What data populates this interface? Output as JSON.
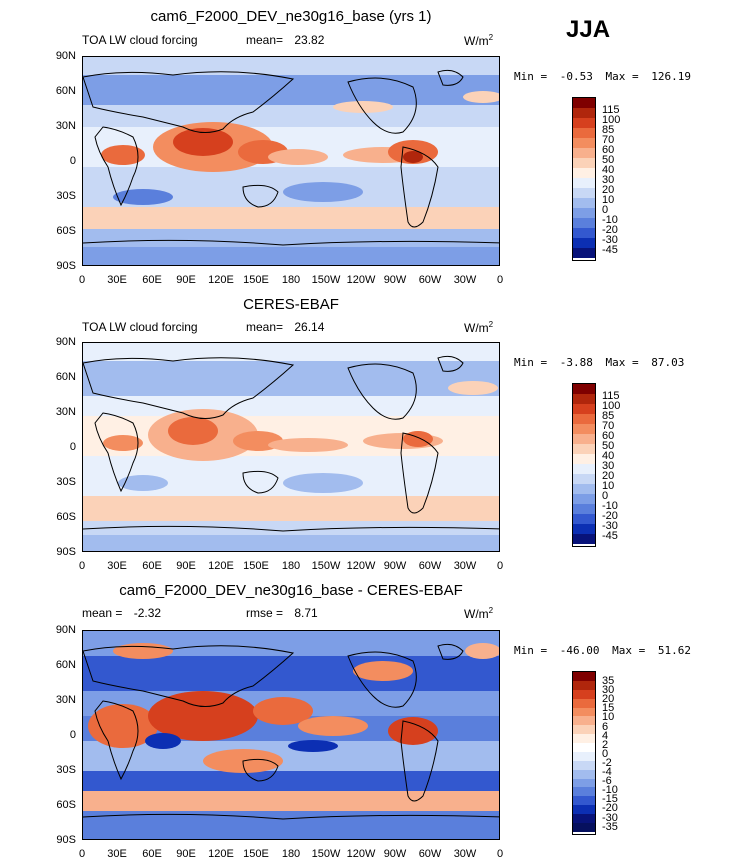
{
  "season": "JJA",
  "panels": [
    {
      "title": "cam6_F2000_DEV_ne30g16_base (yrs 1)",
      "left_label": "TOA LW cloud forcing",
      "stat_label": "mean=",
      "stat_value": "23.82",
      "units": "W/m",
      "units_sup": "2",
      "min_label": "Min =",
      "min_value": "-0.53",
      "max_label": "Max =",
      "max_value": "126.19",
      "colorbar_labels": [
        "115",
        "100",
        "85",
        "70",
        "60",
        "50",
        "40",
        "30",
        "20",
        "10",
        "0",
        "-10",
        "-20",
        "-30",
        "-45"
      ],
      "colorbar_colors": [
        "#7f0000",
        "#b0260c",
        "#d6401e",
        "#ea6a3d",
        "#f38d5f",
        "#f8b08d",
        "#fbd2b8",
        "#fff0e4",
        "#e8f0fc",
        "#c8d8f5",
        "#a2bcee",
        "#7d9ee6",
        "#5a7fdc",
        "#3358cf",
        "#0c2fb3",
        "#08137a"
      ]
    },
    {
      "title": "CERES-EBAF",
      "left_label": "TOA LW cloud forcing",
      "stat_label": "mean=",
      "stat_value": "26.14",
      "units": "W/m",
      "units_sup": "2",
      "min_label": "Min =",
      "min_value": "-3.88",
      "max_label": "Max =",
      "max_value": "87.03",
      "colorbar_labels": [
        "115",
        "100",
        "85",
        "70",
        "60",
        "50",
        "40",
        "30",
        "20",
        "10",
        "0",
        "-10",
        "-20",
        "-30",
        "-45"
      ],
      "colorbar_colors": [
        "#7f0000",
        "#b0260c",
        "#d6401e",
        "#ea6a3d",
        "#f38d5f",
        "#f8b08d",
        "#fbd2b8",
        "#fff0e4",
        "#e8f0fc",
        "#c8d8f5",
        "#a2bcee",
        "#7d9ee6",
        "#5a7fdc",
        "#3358cf",
        "#0c2fb3",
        "#08137a"
      ]
    },
    {
      "title": "cam6_F2000_DEV_ne30g16_base - CERES-EBAF",
      "left_label": "mean =",
      "left_value": "-2.32",
      "stat_label": "rmse =",
      "stat_value": "8.71",
      "units": "W/m",
      "units_sup": "2",
      "min_label": "Min =",
      "min_value": "-46.00",
      "max_label": "Max =",
      "max_value": "51.62",
      "colorbar_labels": [
        "35",
        "30",
        "20",
        "15",
        "10",
        "6",
        "4",
        "2",
        "0",
        "-2",
        "-4",
        "-6",
        "-10",
        "-15",
        "-20",
        "-30",
        "-35"
      ],
      "colorbar_colors": [
        "#7f0000",
        "#b0260c",
        "#d6401e",
        "#ea6a3d",
        "#f38d5f",
        "#f8b08d",
        "#fbd2b8",
        "#fff0e4",
        "#ffffff",
        "#e8f0fc",
        "#c8d8f5",
        "#a2bcee",
        "#7d9ee6",
        "#5a7fdc",
        "#3358cf",
        "#0c2fb3",
        "#08137a",
        "#06105e"
      ]
    }
  ],
  "lat_ticks": [
    "90N",
    "60N",
    "30N",
    "0",
    "30S",
    "60S",
    "90S"
  ],
  "lon_ticks": [
    "0",
    "30E",
    "60E",
    "90E",
    "120E",
    "150E",
    "180",
    "150W",
    "120W",
    "90W",
    "60W",
    "30W",
    "0"
  ]
}
